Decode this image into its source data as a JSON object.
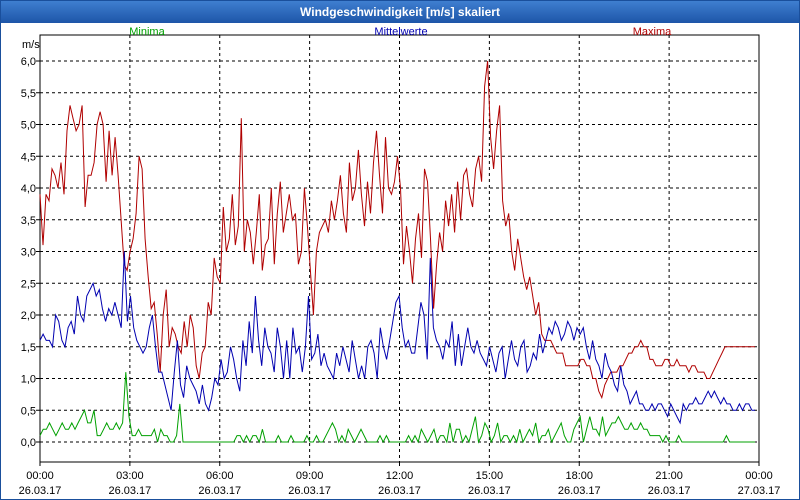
{
  "window": {
    "title": "Windgeschwindigkeit [m/s] skaliert"
  },
  "chart_data": {
    "type": "line",
    "title": "Windgeschwindigkeit [m/s] skaliert",
    "ylabel": "m/s",
    "xlabel": "",
    "ylim": [
      0,
      6
    ],
    "x_range_hours": [
      0,
      24
    ],
    "grid": true,
    "legend_placement": "top",
    "y_ticks": [
      "0,0",
      "0,5",
      "1,0",
      "1,5",
      "2,0",
      "2,5",
      "3,0",
      "3,5",
      "4,0",
      "4,5",
      "5,0",
      "5,5",
      "6,0"
    ],
    "x_ticks": [
      {
        "time": "00:00",
        "date": "26.03.17"
      },
      {
        "time": "03:00",
        "date": "26.03.17"
      },
      {
        "time": "06:00",
        "date": "26.03.17"
      },
      {
        "time": "09:00",
        "date": "26.03.17"
      },
      {
        "time": "12:00",
        "date": "26.03.17"
      },
      {
        "time": "15:00",
        "date": "26.03.17"
      },
      {
        "time": "18:00",
        "date": "26.03.17"
      },
      {
        "time": "21:00",
        "date": "26.03.17"
      },
      {
        "time": "00:00",
        "date": "27.03.17"
      }
    ],
    "series": [
      {
        "name": "Minima",
        "color": "#00a000",
        "values": [
          0.1,
          0.2,
          0.2,
          0.3,
          0.2,
          0.1,
          0.2,
          0.3,
          0.2,
          0.2,
          0.3,
          0.2,
          0.3,
          0.4,
          0.5,
          0.3,
          0.3,
          0.5,
          0.1,
          0.1,
          0.2,
          0.3,
          0.2,
          0.2,
          0.3,
          0.2,
          0.3,
          1.1,
          0.4,
          0.1,
          0.1,
          0.2,
          0.1,
          0.1,
          0.1,
          0.1,
          0.2,
          0.0,
          0.2,
          0.1,
          0.1,
          0.0,
          0.0,
          0.1,
          0.6,
          0.0,
          0.0,
          0.0,
          0.0,
          0.0,
          0.0,
          0.0,
          0.0,
          0.0,
          0.0,
          0.0,
          0.0,
          0.0,
          0.0,
          0.0,
          0.0,
          0.0,
          0.1,
          0.1,
          0.0,
          0.1,
          0.0,
          0.1,
          0.1,
          0.0,
          0.2,
          0.0,
          0.0,
          0.0,
          0.0,
          0.1,
          0.0,
          0.0,
          0.0,
          0.1,
          0.0,
          0.0,
          0.0,
          0.0,
          0.1,
          0.0,
          0.0,
          0.1,
          0.0,
          0.0,
          0.1,
          0.2,
          0.3,
          0.2,
          0.0,
          0.1,
          0.0,
          0.2,
          0.1,
          0.0,
          0.1,
          0.2,
          0.1,
          0.0,
          0.0,
          0.0,
          0.0,
          0.1,
          0.0,
          0.1,
          0.0,
          0.0,
          0.0,
          0.0,
          0.0,
          0.0,
          0.1,
          0.0,
          0.1,
          0.0,
          0.2,
          0.1,
          0.0,
          0.1,
          0.2,
          0.0,
          0.1,
          0.1,
          0.0,
          0.3,
          0.0,
          0.2,
          0.2,
          0.0,
          0.1,
          0.0,
          0.2,
          0.4,
          0.0,
          0.1,
          0.3,
          0.2,
          0.0,
          0.1,
          0.3,
          0.0,
          0.1,
          0.1,
          0.0,
          0.1,
          0.0,
          0.2,
          0.0,
          0.1,
          0.2,
          0.1,
          0.3,
          0.0,
          0.1,
          0.1,
          0.2,
          0.0,
          0.1,
          0.2,
          0.3,
          0.1,
          0.0,
          0.0,
          0.2,
          0.3,
          0.4,
          0.0,
          0.2,
          0.4,
          0.2,
          0.2,
          0.1,
          0.4,
          0.1,
          0.2,
          0.3,
          0.3,
          0.4,
          0.3,
          0.2,
          0.2,
          0.3,
          0.2,
          0.2,
          0.3,
          0.2,
          0.2,
          0.1,
          0.1,
          0.1,
          0.1,
          0.0,
          0.1,
          0.0,
          0.0,
          0.0,
          0.1,
          0.0,
          0.0,
          0.0,
          0.0,
          0.0,
          0.0,
          0.0,
          0.0,
          0.0,
          0.0,
          0.0,
          0.0,
          0.0,
          0.0,
          0.1,
          0.0,
          0.0,
          0.0,
          0.0,
          0.0,
          0.0,
          0.0,
          0.0,
          0.0
        ]
      },
      {
        "name": "Mittelwerte",
        "color": "#0000b0",
        "values": [
          1.6,
          1.7,
          1.6,
          1.6,
          1.5,
          2.0,
          1.9,
          1.6,
          1.5,
          1.8,
          1.9,
          1.7,
          2.3,
          2.0,
          1.9,
          2.3,
          2.4,
          2.5,
          2.3,
          2.4,
          2.1,
          1.9,
          2.1,
          2.0,
          2.2,
          2.0,
          1.8,
          3.0,
          1.9,
          2.3,
          1.8,
          1.6,
          1.5,
          1.4,
          1.5,
          1.8,
          2.0,
          1.5,
          1.1,
          1.1,
          0.9,
          0.7,
          0.5,
          1.1,
          1.6,
          0.9,
          0.7,
          1.2,
          1.0,
          0.9,
          0.8,
          0.6,
          0.9,
          0.6,
          0.5,
          0.7,
          1.0,
          0.9,
          1.3,
          1.0,
          1.1,
          1.5,
          1.3,
          1.0,
          0.8,
          1.6,
          1.2,
          1.9,
          1.4,
          2.3,
          1.6,
          1.2,
          1.8,
          1.5,
          1.4,
          1.1,
          1.8,
          1.5,
          1.0,
          1.6,
          1.0,
          1.8,
          1.4,
          1.5,
          1.1,
          1.5,
          2.3,
          1.3,
          1.4,
          1.7,
          1.2,
          1.4,
          1.2,
          1.1,
          1.0,
          1.4,
          1.2,
          1.5,
          1.3,
          1.1,
          1.6,
          1.3,
          1.0,
          1.2,
          1.0,
          1.5,
          1.6,
          1.4,
          1.0,
          1.8,
          1.5,
          1.3,
          1.6,
          1.9,
          2.2,
          2.3,
          1.8,
          1.5,
          1.6,
          1.4,
          1.4,
          1.8,
          2.2,
          2.0,
          1.3,
          2.9,
          1.8,
          1.6,
          1.5,
          1.3,
          1.6,
          1.5,
          1.9,
          1.2,
          1.7,
          1.2,
          1.5,
          1.8,
          1.5,
          1.4,
          1.6,
          1.4,
          1.3,
          1.2,
          1.5,
          1.3,
          1.1,
          1.4,
          1.5,
          1.0,
          1.3,
          1.6,
          1.3,
          1.2,
          1.5,
          1.6,
          1.1,
          1.2,
          1.4,
          1.3,
          1.7,
          1.4,
          1.6,
          1.8,
          1.7,
          1.9,
          1.8,
          1.6,
          1.7,
          1.9,
          1.8,
          1.6,
          1.8,
          1.7,
          1.8,
          1.5,
          1.3,
          1.6,
          1.3,
          1.2,
          1.0,
          1.4,
          1.2,
          1.1,
          0.9,
          0.8,
          1.2,
          0.9,
          0.8,
          0.6,
          0.7,
          0.8,
          0.6,
          0.6,
          0.5,
          0.5,
          0.6,
          0.5,
          0.6,
          0.6,
          0.5,
          0.4,
          0.6,
          0.5,
          0.4,
          0.3,
          0.6,
          0.5,
          0.6,
          0.6,
          0.7,
          0.6,
          0.6,
          0.7,
          0.8,
          0.7,
          0.8,
          0.7,
          0.6,
          0.7,
          0.6,
          0.6,
          0.5,
          0.5,
          0.6,
          0.5,
          0.6,
          0.6,
          0.5,
          0.5
        ]
      },
      {
        "name": "Maxima",
        "color": "#b00000",
        "values": [
          3.9,
          3.1,
          3.9,
          3.8,
          4.3,
          4.2,
          4.0,
          4.4,
          3.9,
          4.9,
          5.3,
          5.1,
          4.9,
          5.0,
          5.3,
          3.7,
          4.2,
          4.2,
          4.4,
          5.0,
          5.2,
          5.0,
          4.1,
          4.9,
          4.2,
          4.8,
          4.2,
          3.5,
          2.8,
          2.7,
          3.0,
          3.2,
          3.6,
          4.5,
          4.3,
          3.2,
          2.6,
          2.1,
          2.2,
          1.7,
          1.1,
          2.0,
          2.4,
          1.5,
          1.8,
          1.7,
          1.5,
          1.4,
          1.9,
          1.5,
          2.0,
          1.8,
          1.2,
          1.0,
          1.4,
          1.5,
          2.2,
          2.0,
          2.9,
          2.6,
          2.5,
          3.7,
          3.0,
          3.2,
          3.9,
          3.1,
          3.4,
          5.1,
          3.0,
          3.5,
          3.3,
          2.8,
          3.3,
          3.9,
          2.7,
          3.1,
          3.2,
          4.0,
          2.8,
          3.6,
          4.1,
          3.3,
          3.6,
          3.9,
          3.5,
          3.6,
          2.8,
          3.0,
          4.0,
          3.4,
          2.7,
          2.0,
          3.0,
          3.3,
          3.4,
          3.5,
          3.3,
          3.8,
          3.5,
          3.8,
          4.2,
          3.6,
          3.3,
          4.4,
          3.8,
          4.0,
          4.6,
          3.9,
          3.4,
          4.1,
          3.6,
          4.4,
          4.9,
          4.2,
          3.6,
          4.8,
          4.0,
          3.9,
          4.1,
          4.5,
          4.0,
          2.8,
          3.4,
          3.0,
          2.5,
          3.2,
          3.6,
          2.9,
          4.3,
          4.1,
          3.2,
          2.1,
          2.8,
          3.3,
          3.0,
          3.8,
          3.4,
          3.9,
          3.3,
          4.1,
          3.5,
          4.2,
          4.3,
          3.9,
          3.7,
          4.3,
          4.5,
          4.1,
          5.6,
          6.0,
          4.8,
          4.3,
          4.9,
          5.3,
          3.8,
          3.4,
          3.6,
          3.0,
          2.7,
          3.2,
          2.9,
          2.6,
          2.4,
          2.6,
          2.3,
          2.0,
          2.2,
          1.7,
          1.6,
          1.6,
          1.6,
          1.5,
          1.4,
          1.4,
          1.4,
          1.2,
          1.2,
          1.2,
          1.2,
          1.2,
          1.3,
          1.3,
          1.2,
          1.2,
          1.0,
          1.0,
          0.8,
          0.7,
          0.9,
          1.0,
          1.1,
          1.1,
          1.1,
          1.2,
          1.2,
          1.3,
          1.4,
          1.4,
          1.5,
          1.5,
          1.6,
          1.5,
          1.5,
          1.3,
          1.3,
          1.2,
          1.2,
          1.2,
          1.3,
          1.3,
          1.2,
          1.2,
          1.3,
          1.2,
          1.2,
          1.2,
          1.1,
          1.2,
          1.2,
          1.1,
          1.1,
          1.1,
          1.0,
          1.0,
          1.1,
          1.2,
          1.3,
          1.4,
          1.5,
          1.5,
          1.5,
          1.5,
          1.5,
          1.5,
          1.5,
          1.5,
          1.5,
          1.5,
          1.5
        ]
      }
    ]
  }
}
